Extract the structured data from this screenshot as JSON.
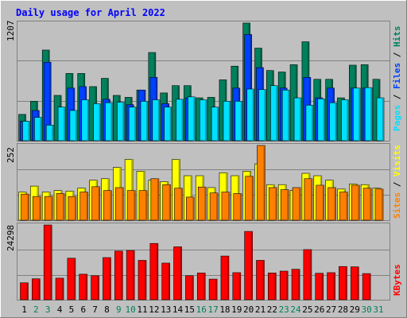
{
  "title": "Daily usage for April 2022",
  "colors": {
    "background": "#c0c0c0",
    "title": "#0000ff",
    "hits": "#00805c",
    "files": "#0040ff",
    "pages": "#00e0ff",
    "visits": "#ffff00",
    "sites": "#ff8000",
    "kbytes": "#ff0000",
    "weekend_label": "#00805c",
    "weekday_label": "#000000"
  },
  "chart_data": [
    {
      "type": "bar",
      "panel": "hits-files-pages",
      "ymax_label": "1207",
      "ylim": [
        0,
        1207
      ],
      "legend": [
        {
          "label": "Pages",
          "color": "#00e0ff"
        },
        {
          "label": "Files",
          "color": "#0040ff"
        },
        {
          "label": "Hits",
          "color": "#00805c"
        }
      ],
      "categories": [
        "1",
        "2",
        "3",
        "4",
        "5",
        "6",
        "7",
        "8",
        "9",
        "10",
        "11",
        "12",
        "13",
        "14",
        "15",
        "16",
        "17",
        "18",
        "19",
        "20",
        "21",
        "22",
        "23",
        "24",
        "25",
        "26",
        "27",
        "28",
        "29",
        "30",
        "31"
      ],
      "weekend_days": [
        "2",
        "3",
        "9",
        "10",
        "16",
        "17",
        "23",
        "24",
        "30",
        "31"
      ],
      "series": [
        {
          "name": "Hits",
          "values": [
            270,
            405,
            930,
            465,
            690,
            690,
            555,
            640,
            465,
            445,
            520,
            905,
            490,
            565,
            565,
            440,
            445,
            625,
            765,
            1207,
            950,
            720,
            705,
            780,
            1015,
            630,
            630,
            440,
            775,
            780,
            630
          ]
        },
        {
          "name": "Files",
          "values": [
            200,
            310,
            805,
            0,
            540,
            555,
            0,
            425,
            0,
            370,
            520,
            650,
            380,
            0,
            440,
            0,
            0,
            0,
            540,
            1090,
            750,
            0,
            540,
            0,
            650,
            440,
            540,
            0,
            540,
            540,
            0
          ]
        },
        {
          "name": "Pages",
          "values": [
            200,
            240,
            160,
            345,
            310,
            420,
            380,
            390,
            395,
            345,
            405,
            420,
            345,
            425,
            450,
            420,
            345,
            405,
            405,
            530,
            525,
            565,
            520,
            440,
            365,
            430,
            390,
            420,
            540,
            545,
            440
          ]
        }
      ]
    },
    {
      "type": "bar",
      "panel": "visits-sites",
      "ymax_label": "252",
      "ylim": [
        0,
        252
      ],
      "legend": [
        {
          "label": "Sites",
          "color": "#ff8000"
        },
        {
          "label": "Visits",
          "color": "#ffff00"
        }
      ],
      "categories": [
        "1",
        "2",
        "3",
        "4",
        "5",
        "6",
        "7",
        "8",
        "9",
        "10",
        "11",
        "12",
        "13",
        "14",
        "15",
        "16",
        "17",
        "18",
        "19",
        "20",
        "21",
        "22",
        "23",
        "24",
        "25",
        "26",
        "27",
        "28",
        "29",
        "30",
        "31"
      ],
      "series": [
        {
          "name": "Visits",
          "values": [
            95,
            115,
            95,
            100,
            98,
            108,
            135,
            140,
            178,
            205,
            165,
            135,
            130,
            205,
            150,
            150,
            110,
            160,
            150,
            165,
            190,
            120,
            120,
            100,
            158,
            150,
            135,
            105,
            122,
            120,
            108
          ]
        },
        {
          "name": "Sites",
          "values": [
            88,
            80,
            80,
            90,
            80,
            95,
            113,
            100,
            110,
            100,
            100,
            140,
            120,
            108,
            78,
            112,
            92,
            95,
            90,
            148,
            252,
            110,
            103,
            110,
            140,
            118,
            110,
            95,
            118,
            108,
            105
          ]
        }
      ]
    },
    {
      "type": "bar",
      "panel": "kbytes",
      "ymax_label": "24298",
      "ylim": [
        0,
        24298
      ],
      "legend": [
        {
          "label": "KBytes",
          "color": "#ff0000"
        }
      ],
      "categories": [
        "1",
        "2",
        "3",
        "4",
        "5",
        "6",
        "7",
        "8",
        "9",
        "10",
        "11",
        "12",
        "13",
        "14",
        "15",
        "16",
        "17",
        "18",
        "19",
        "20",
        "21",
        "22",
        "23",
        "24",
        "25",
        "26",
        "27",
        "28",
        "29",
        "30",
        "31"
      ],
      "series": [
        {
          "name": "KBytes",
          "values": [
            5500,
            6800,
            24298,
            7000,
            13500,
            8300,
            7800,
            13700,
            15800,
            16000,
            12800,
            18300,
            11900,
            17200,
            7800,
            8700,
            6700,
            14200,
            8800,
            22200,
            12800,
            8700,
            9300,
            9900,
            16300,
            8600,
            8800,
            10800,
            10700,
            8500,
            0
          ]
        }
      ]
    }
  ]
}
